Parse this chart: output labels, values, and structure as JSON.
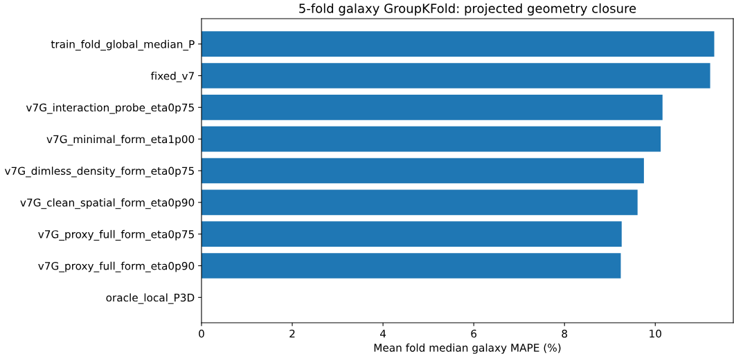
{
  "chart_data": {
    "type": "bar",
    "orientation": "horizontal",
    "title": "5-fold galaxy GroupKFold: projected geometry closure",
    "xlabel": "Mean fold median galaxy MAPE (%)",
    "categories": [
      "train_fold_global_median_P",
      "fixed_v7",
      "v7G_interaction_probe_eta0p75",
      "v7G_minimal_form_eta1p00",
      "v7G_dimless_density_form_eta0p75",
      "v7G_clean_spatial_form_eta0p90",
      "v7G_proxy_full_form_eta0p75",
      "v7G_proxy_full_form_eta0p90",
      "oracle_local_P3D"
    ],
    "values": [
      11.3,
      11.21,
      10.16,
      10.12,
      9.75,
      9.61,
      9.26,
      9.24,
      0
    ],
    "color": "#1f77b4",
    "xlim": [
      0,
      11.72
    ],
    "xticks": [
      0,
      2,
      4,
      6,
      8,
      10
    ],
    "grid": false
  }
}
